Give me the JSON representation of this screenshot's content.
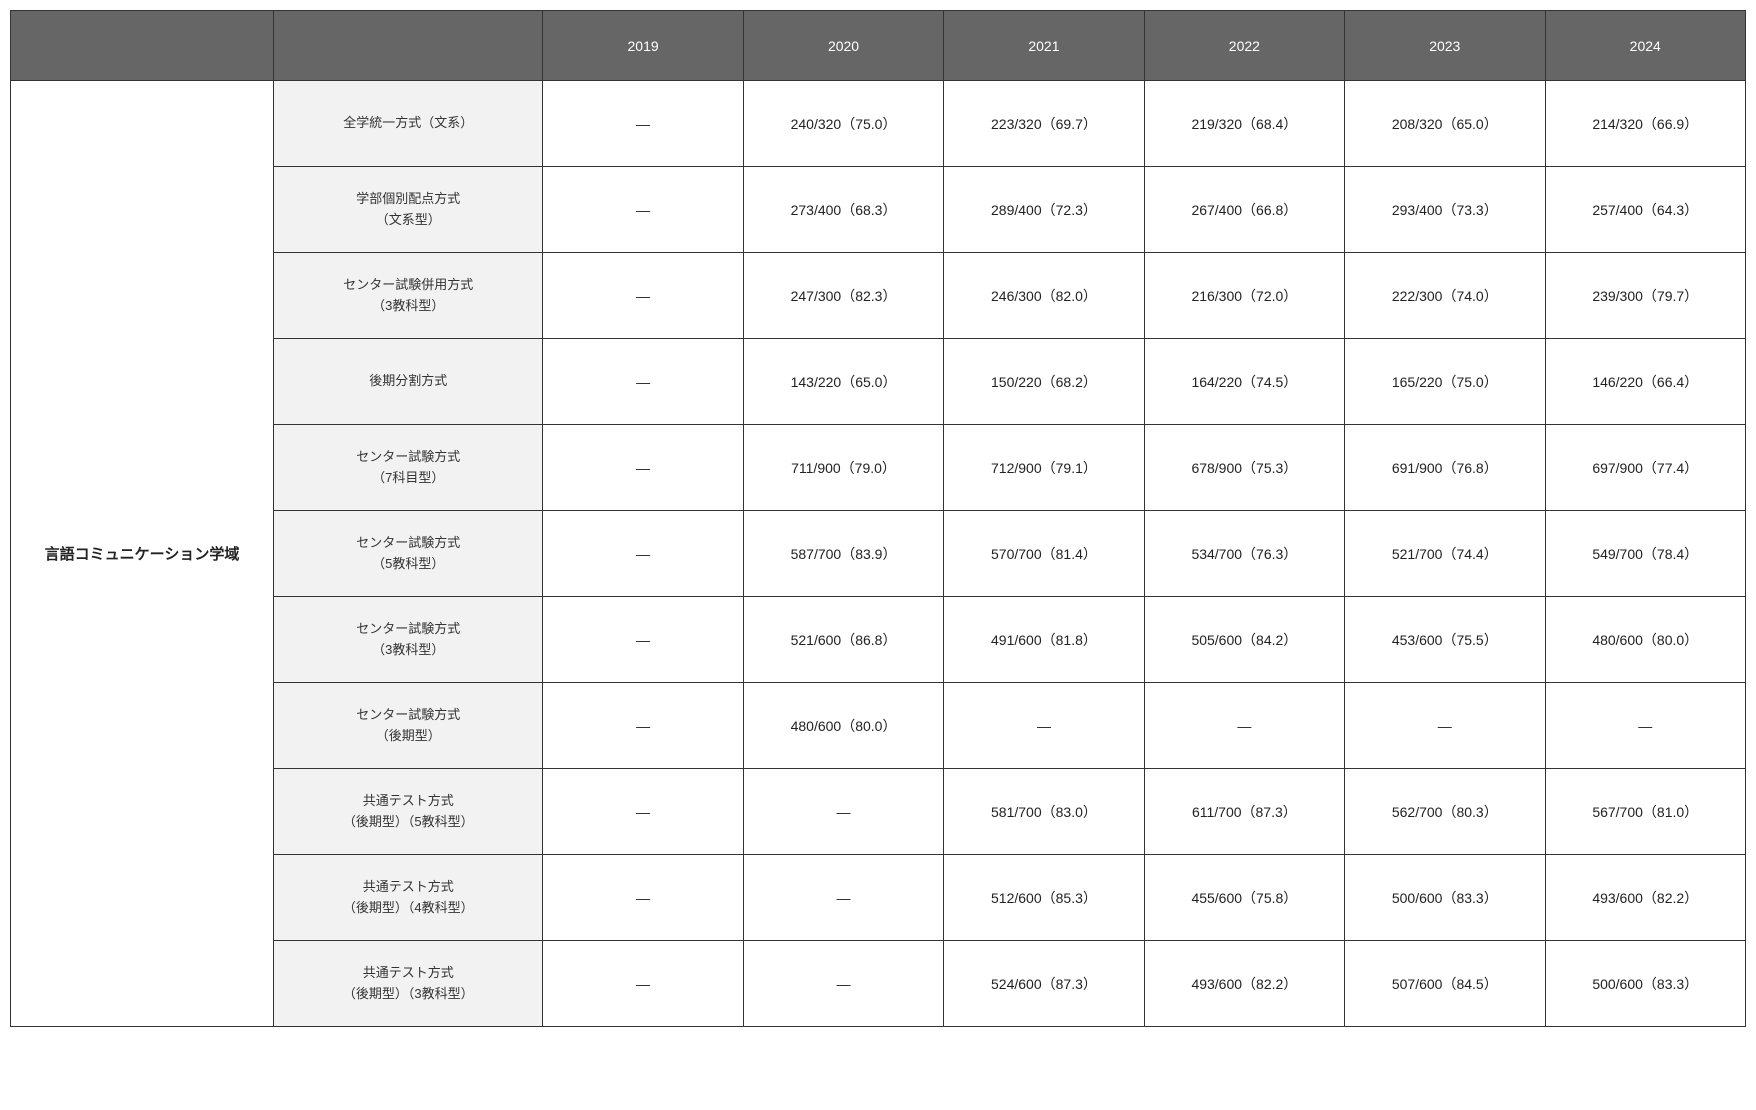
{
  "columns": [
    "2019",
    "2020",
    "2021",
    "2022",
    "2023",
    "2024"
  ],
  "category": "言語コミュニケーション学域",
  "rows": [
    {
      "method": "全学統一方式（文系）",
      "values": [
        "—",
        "240/320（75.0）",
        "223/320（69.7）",
        "219/320（68.4）",
        "208/320（65.0）",
        "214/320（66.9）"
      ]
    },
    {
      "method": "学部個別配点方式\n（文系型）",
      "values": [
        "—",
        "273/400（68.3）",
        "289/400（72.3）",
        "267/400（66.8）",
        "293/400（73.3）",
        "257/400（64.3）"
      ]
    },
    {
      "method": "センター試験併用方式\n（3教科型）",
      "values": [
        "—",
        "247/300（82.3）",
        "246/300（82.0）",
        "216/300（72.0）",
        "222/300（74.0）",
        "239/300（79.7）"
      ]
    },
    {
      "method": "後期分割方式",
      "values": [
        "—",
        "143/220（65.0）",
        "150/220（68.2）",
        "164/220（74.5）",
        "165/220（75.0）",
        "146/220（66.4）"
      ]
    },
    {
      "method": "センター試験方式\n（7科目型）",
      "values": [
        "—",
        "711/900（79.0）",
        "712/900（79.1）",
        "678/900（75.3）",
        "691/900（76.8）",
        "697/900（77.4）"
      ]
    },
    {
      "method": "センター試験方式\n（5教科型）",
      "values": [
        "—",
        "587/700（83.9）",
        "570/700（81.4）",
        "534/700（76.3）",
        "521/700（74.4）",
        "549/700（78.4）"
      ]
    },
    {
      "method": "センター試験方式\n（3教科型）",
      "values": [
        "—",
        "521/600（86.8）",
        "491/600（81.8）",
        "505/600（84.2）",
        "453/600（75.5）",
        "480/600（80.0）"
      ]
    },
    {
      "method": "センター試験方式\n（後期型）",
      "values": [
        "—",
        "480/600（80.0）",
        "—",
        "—",
        "—",
        "—"
      ]
    },
    {
      "method": "共通テスト方式\n（後期型）（5教科型）",
      "values": [
        "—",
        "—",
        "581/700（83.0）",
        "611/700（87.3）",
        "562/700（80.3）",
        "567/700（81.0）"
      ]
    },
    {
      "method": "共通テスト方式\n（後期型）（4教科型）",
      "values": [
        "—",
        "—",
        "512/600（85.3）",
        "455/600（75.8）",
        "500/600（83.3）",
        "493/600（82.2）"
      ]
    },
    {
      "method": "共通テスト方式\n（後期型）（3教科型）",
      "values": [
        "—",
        "—",
        "524/600（87.3）",
        "493/600（82.2）",
        "507/600（84.5）",
        "500/600（83.3）"
      ]
    }
  ],
  "style": {
    "header_bg": "#666666",
    "header_fg": "#ffffff",
    "method_bg": "#f2f2f2",
    "data_bg": "#ffffff",
    "border_color": "#333333",
    "category_font_weight": "bold"
  }
}
